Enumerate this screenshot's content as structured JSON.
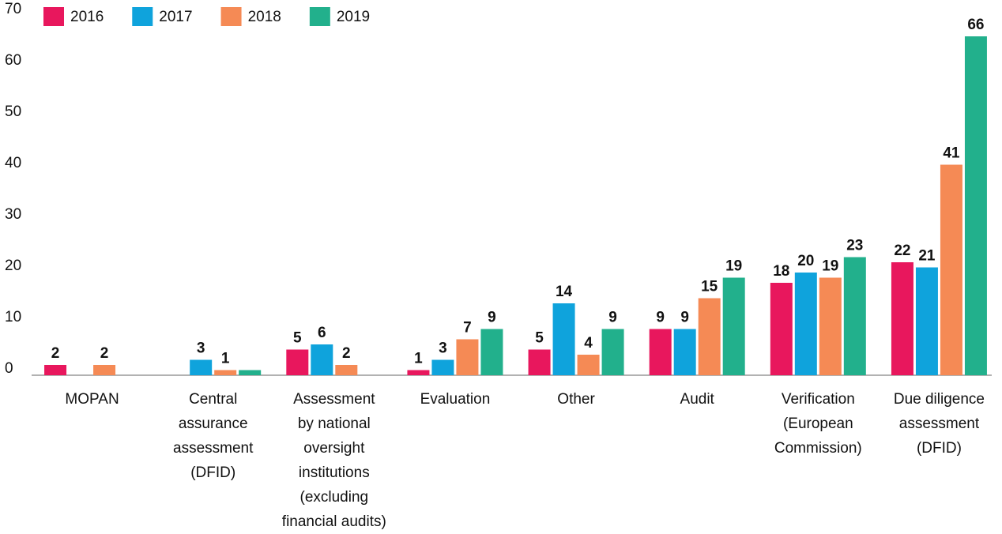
{
  "chart_data": {
    "type": "bar",
    "categories": [
      "MOPAN",
      "Central\nassurance\nassessment\n(DFID)",
      "Assessment\nby national\noversight\ninstitutions\n(excluding\nfinancial audits)",
      "Evaluation",
      "Other",
      "Audit",
      "Verification\n(European\nCommission)",
      "Due diligence\nassessment\n(DFID)"
    ],
    "series": [
      {
        "name": "2016",
        "color": "#e8175d",
        "values": [
          2,
          null,
          5,
          1,
          5,
          9,
          18,
          22
        ]
      },
      {
        "name": "2017",
        "color": "#0fa3dc",
        "values": [
          null,
          3,
          6,
          3,
          14,
          9,
          20,
          21
        ]
      },
      {
        "name": "2018",
        "color": "#f58a55",
        "values": [
          2,
          1,
          2,
          7,
          4,
          15,
          19,
          41
        ]
      },
      {
        "name": "2019",
        "color": "#22b08c",
        "values": [
          null,
          1,
          null,
          9,
          9,
          19,
          23,
          66
        ],
        "value_labels": [
          null,
          null,
          null,
          "9",
          "9",
          "19",
          "23",
          "66"
        ]
      }
    ],
    "ylim": [
      0,
      70
    ],
    "yticks": [
      0,
      10,
      20,
      30,
      40,
      50,
      60,
      70
    ],
    "grid": false,
    "legend": "top-left"
  }
}
